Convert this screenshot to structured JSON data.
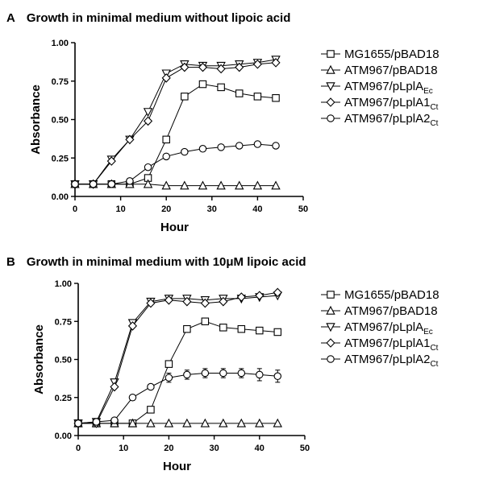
{
  "chart_data": [
    {
      "type": "line",
      "panel_letter": "A",
      "title": "Growth in minimal medium without lipoic acid",
      "xlabel": "Hour",
      "ylabel": "Absorbance",
      "xlim": [
        0,
        50
      ],
      "ylim": [
        0,
        1.0
      ],
      "xticks": [
        "0",
        "10",
        "20",
        "30",
        "40",
        "50"
      ],
      "yticks": [
        "0.00",
        "0.25",
        "0.50",
        "0.75",
        "1.00"
      ],
      "grid": false,
      "legend_position": "right",
      "series": [
        {
          "name": "MG1655/pBAD18",
          "marker": "square",
          "x": [
            0,
            4,
            8,
            12,
            16,
            20,
            24,
            28,
            32,
            36,
            40,
            44
          ],
          "y": [
            0.08,
            0.08,
            0.08,
            0.08,
            0.12,
            0.37,
            0.65,
            0.73,
            0.71,
            0.67,
            0.65,
            0.64
          ]
        },
        {
          "name": "ATM967/pBAD18",
          "marker": "triangle-up",
          "x": [
            0,
            4,
            8,
            12,
            16,
            20,
            24,
            28,
            32,
            36,
            40,
            44
          ],
          "y": [
            0.08,
            0.08,
            0.08,
            0.08,
            0.08,
            0.07,
            0.07,
            0.07,
            0.07,
            0.07,
            0.07,
            0.07
          ]
        },
        {
          "name": "ATM967/pLplA",
          "name_sub": "Ec",
          "marker": "triangle-down",
          "x": [
            0,
            4,
            8,
            12,
            16,
            20,
            24,
            28,
            32,
            36,
            40,
            44
          ],
          "y": [
            0.08,
            0.08,
            0.24,
            0.37,
            0.55,
            0.8,
            0.86,
            0.85,
            0.85,
            0.86,
            0.87,
            0.89
          ]
        },
        {
          "name": "ATM967/pLplA1",
          "name_sub": "Ct",
          "marker": "diamond",
          "x": [
            0,
            4,
            8,
            12,
            16,
            20,
            24,
            28,
            32,
            36,
            40,
            44
          ],
          "y": [
            0.08,
            0.08,
            0.23,
            0.37,
            0.49,
            0.77,
            0.84,
            0.84,
            0.83,
            0.84,
            0.86,
            0.87
          ]
        },
        {
          "name": "ATM967/pLplA2",
          "name_sub": "Ct",
          "marker": "circle",
          "x": [
            0,
            4,
            8,
            12,
            16,
            20,
            24,
            28,
            32,
            36,
            40,
            44
          ],
          "y": [
            0.08,
            0.08,
            0.08,
            0.1,
            0.19,
            0.26,
            0.29,
            0.31,
            0.32,
            0.33,
            0.34,
            0.33
          ]
        }
      ]
    },
    {
      "type": "line",
      "panel_letter": "B",
      "title": "Growth in minimal medium with 10μM lipoic acid",
      "xlabel": "Hour",
      "ylabel": "Absorbance",
      "xlim": [
        0,
        50
      ],
      "ylim": [
        0,
        1.0
      ],
      "xticks": [
        "0",
        "10",
        "20",
        "30",
        "40",
        "50"
      ],
      "yticks": [
        "0.00",
        "0.25",
        "0.50",
        "0.75",
        "1.00"
      ],
      "grid": false,
      "legend_position": "right",
      "series": [
        {
          "name": "MG1655/pBAD18",
          "marker": "square",
          "x": [
            0,
            4,
            8,
            12,
            16,
            20,
            24,
            28,
            32,
            36,
            40,
            44
          ],
          "y": [
            0.08,
            0.08,
            0.08,
            0.08,
            0.17,
            0.47,
            0.7,
            0.75,
            0.71,
            0.7,
            0.69,
            0.68
          ]
        },
        {
          "name": "ATM967/pBAD18",
          "marker": "triangle-up",
          "x": [
            0,
            4,
            8,
            12,
            16,
            20,
            24,
            28,
            32,
            36,
            40,
            44
          ],
          "y": [
            0.08,
            0.08,
            0.08,
            0.08,
            0.08,
            0.08,
            0.08,
            0.08,
            0.08,
            0.08,
            0.08,
            0.08
          ]
        },
        {
          "name": "ATM967/pLplA",
          "name_sub": "Ec",
          "marker": "triangle-down",
          "x": [
            0,
            4,
            8,
            12,
            16,
            20,
            24,
            28,
            32,
            36,
            40,
            44
          ],
          "y": [
            0.08,
            0.09,
            0.35,
            0.74,
            0.88,
            0.9,
            0.9,
            0.89,
            0.9,
            0.9,
            0.91,
            0.92
          ]
        },
        {
          "name": "ATM967/pLplA1",
          "name_sub": "Ct",
          "marker": "diamond",
          "x": [
            0,
            4,
            8,
            12,
            16,
            20,
            24,
            28,
            32,
            36,
            40,
            44
          ],
          "y": [
            0.08,
            0.08,
            0.32,
            0.72,
            0.87,
            0.89,
            0.88,
            0.87,
            0.88,
            0.91,
            0.92,
            0.94
          ]
        },
        {
          "name": "ATM967/pLplA2",
          "name_sub": "Ct",
          "marker": "circle",
          "x": [
            0,
            4,
            8,
            12,
            16,
            20,
            24,
            28,
            32,
            36,
            40,
            44
          ],
          "y": [
            0.08,
            0.09,
            0.1,
            0.25,
            0.32,
            0.38,
            0.4,
            0.41,
            0.41,
            0.41,
            0.4,
            0.39
          ],
          "err": [
            0,
            0,
            0,
            0,
            0,
            0.03,
            0.03,
            0.03,
            0.03,
            0.03,
            0.04,
            0.04
          ]
        }
      ]
    }
  ]
}
